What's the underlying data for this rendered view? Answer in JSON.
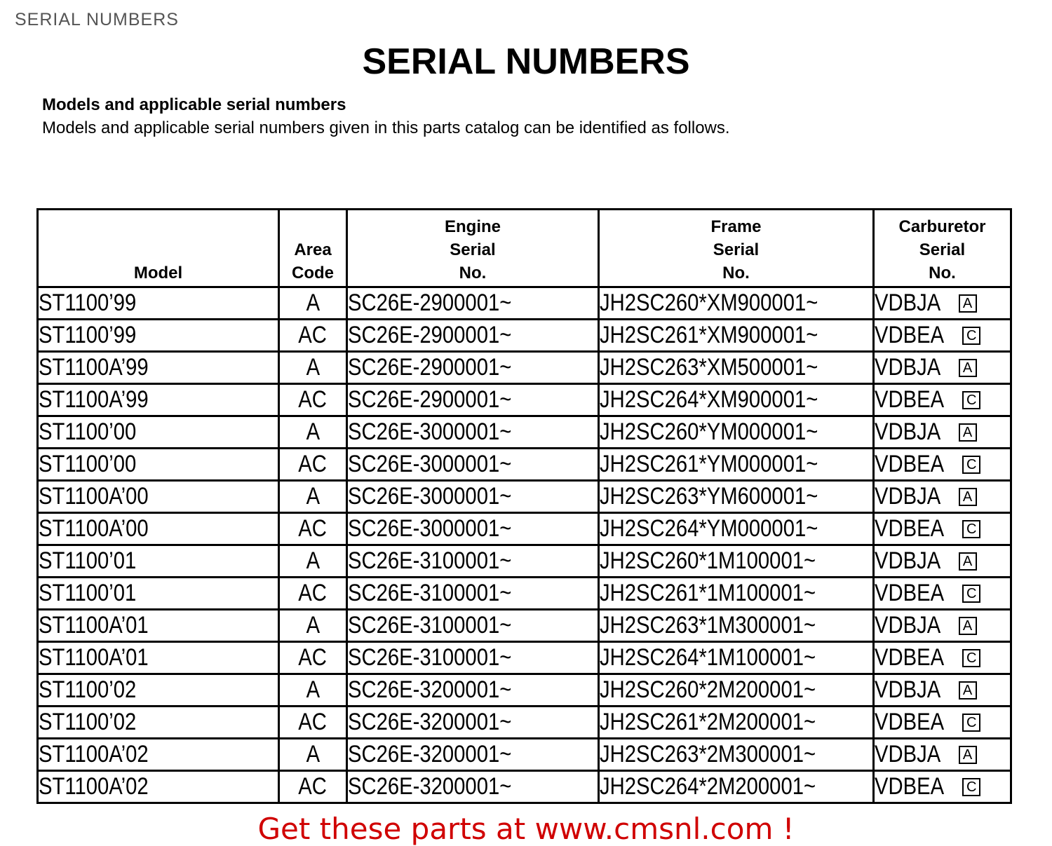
{
  "breadcrumb": "SERIAL NUMBERS",
  "title": "SERIAL NUMBERS",
  "subtitle": "Models and applicable serial numbers",
  "intro": "Models and applicable serial numbers given in this parts catalog can be identified as follows.",
  "headers": {
    "model": "Model",
    "area": [
      "Area",
      "Code"
    ],
    "engine": [
      "Engine",
      "Serial",
      "No."
    ],
    "frame": [
      "Frame",
      "Serial",
      "No."
    ],
    "carb": [
      "Carburetor",
      "Serial",
      "No."
    ]
  },
  "rows": [
    {
      "model": "ST1100’99",
      "area": "A",
      "engine": "SC26E-2900001~",
      "frame": "JH2SC260*XM900001~",
      "carb": "VDBJA",
      "type": "A"
    },
    {
      "model": "ST1100’99",
      "area": "AC",
      "engine": "SC26E-2900001~",
      "frame": "JH2SC261*XM900001~",
      "carb": "VDBEA",
      "type": "C"
    },
    {
      "model": "ST1100A’99",
      "area": "A",
      "engine": "SC26E-2900001~",
      "frame": "JH2SC263*XM500001~",
      "carb": "VDBJA",
      "type": "A"
    },
    {
      "model": "ST1100A’99",
      "area": "AC",
      "engine": "SC26E-2900001~",
      "frame": "JH2SC264*XM900001~",
      "carb": "VDBEA",
      "type": "C"
    },
    {
      "model": "ST1100’00",
      "area": "A",
      "engine": "SC26E-3000001~",
      "frame": "JH2SC260*YM000001~",
      "carb": "VDBJA",
      "type": "A"
    },
    {
      "model": "ST1100’00",
      "area": "AC",
      "engine": "SC26E-3000001~",
      "frame": "JH2SC261*YM000001~",
      "carb": "VDBEA",
      "type": "C"
    },
    {
      "model": "ST1100A’00",
      "area": "A",
      "engine": "SC26E-3000001~",
      "frame": "JH2SC263*YM600001~",
      "carb": "VDBJA",
      "type": "A"
    },
    {
      "model": "ST1100A’00",
      "area": "AC",
      "engine": "SC26E-3000001~",
      "frame": "JH2SC264*YM000001~",
      "carb": "VDBEA",
      "type": "C"
    },
    {
      "model": "ST1100’01",
      "area": "A",
      "engine": "SC26E-3100001~",
      "frame": "JH2SC260*1M100001~",
      "carb": "VDBJA",
      "type": "A"
    },
    {
      "model": "ST1100’01",
      "area": "AC",
      "engine": "SC26E-3100001~",
      "frame": "JH2SC261*1M100001~",
      "carb": "VDBEA",
      "type": "C"
    },
    {
      "model": "ST1100A’01",
      "area": "A",
      "engine": "SC26E-3100001~",
      "frame": "JH2SC263*1M300001~",
      "carb": "VDBJA",
      "type": "A"
    },
    {
      "model": "ST1100A’01",
      "area": "AC",
      "engine": "SC26E-3100001~",
      "frame": "JH2SC264*1M100001~",
      "carb": "VDBEA",
      "type": "C"
    },
    {
      "model": "ST1100’02",
      "area": "A",
      "engine": "SC26E-3200001~",
      "frame": "JH2SC260*2M200001~",
      "carb": "VDBJA",
      "type": "A"
    },
    {
      "model": "ST1100’02",
      "area": "AC",
      "engine": "SC26E-3200001~",
      "frame": "JH2SC261*2M200001~",
      "carb": "VDBEA",
      "type": "C"
    },
    {
      "model": "ST1100A’02",
      "area": "A",
      "engine": "SC26E-3200001~",
      "frame": "JH2SC263*2M300001~",
      "carb": "VDBJA",
      "type": "A"
    },
    {
      "model": "ST1100A’02",
      "area": "AC",
      "engine": "SC26E-3200001~",
      "frame": "JH2SC264*2M200001~",
      "carb": "VDBEA",
      "type": "C"
    }
  ],
  "footer": "Get these parts at www.cmsnl.com !",
  "colors": {
    "footer": "#d00000"
  }
}
